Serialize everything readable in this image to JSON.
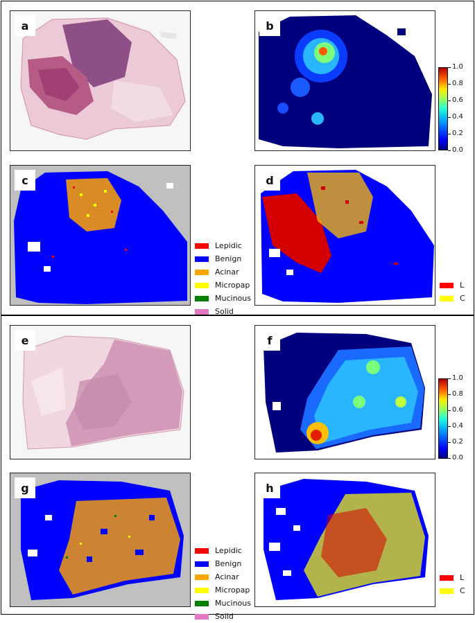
{
  "panel_labels": {
    "a": "a",
    "b": "b",
    "c": "c",
    "d": "d",
    "e": "e",
    "f": "f",
    "g": "g",
    "h": "h"
  },
  "colorbar_ticks": [
    "1.0",
    "0.8",
    "0.6",
    "0.4",
    "0.2",
    "0.0"
  ],
  "subtype_legend": [
    {
      "label": "Lepidic",
      "color": "#ff0000"
    },
    {
      "label": "Benign",
      "color": "#0000ff"
    },
    {
      "label": "Acinar",
      "color": "#ffa500"
    },
    {
      "label": "Micropap",
      "color": "#ffff00"
    },
    {
      "label": "Mucinous",
      "color": "#008000"
    },
    {
      "label": "Solid",
      "color": "#e377c2"
    }
  ],
  "lc_legend": [
    {
      "label": "L",
      "color": "#ff0000"
    },
    {
      "label": "C",
      "color": "#ffff00"
    }
  ],
  "colors": {
    "heatmap_low": "#00007f",
    "map_background": "#c0c0c0",
    "tissue_pink": "#e3b4c8",
    "tissue_purple": "#9a5a8a"
  }
}
